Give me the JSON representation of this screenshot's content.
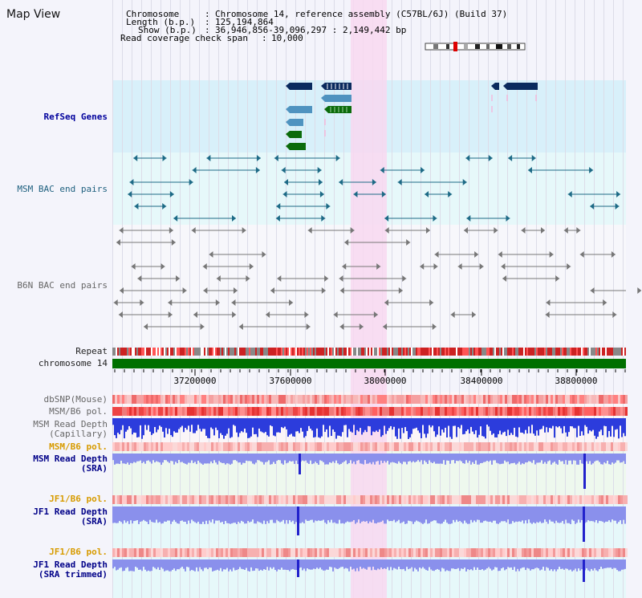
{
  "page_title": "Map View",
  "info": {
    "chromosome_label": "Chromosome",
    "chromosome_value": "Chromosome 14, reference assembly (C57BL/6J) (Build 37)",
    "length_label": "Length (b.p.)",
    "length_value": "125,194,864",
    "show_label": "Show (b.p.)",
    "show_value": "36,946,856-39,096,297 : 2,149,442 bp",
    "coverage_label": "Read coverage check span",
    "coverage_value": "10,000"
  },
  "tracks": {
    "refseq": "RefSeq Genes",
    "msm_bac": "MSM BAC end pairs",
    "b6n_bac": "B6N BAC end pairs",
    "repeat": "Repeat",
    "chromosome": "chromosome 14",
    "dbsnp": "dbSNP(Mouse)",
    "msm_b6_pol_1": "MSM/B6 pol.",
    "msm_depth_cap_1": "MSM Read Depth",
    "msm_depth_cap_2": "(Capillary)",
    "msm_b6_pol_2": "MSM/B6 pol.",
    "msm_depth_sra_1": "MSM Read Depth",
    "msm_depth_sra_2": "(SRA)",
    "jf1_b6_pol_1": "JF1/B6 pol.",
    "jf1_depth_sra_1": "JF1 Read Depth",
    "jf1_depth_sra_2": "(SRA)",
    "jf1_b6_pol_2": "JF1/B6 pol.",
    "jf1_depth_trim_1": "JF1 Read Depth",
    "jf1_depth_trim_2": "(SRA trimmed)"
  },
  "axis": {
    "ticks": [
      "37200000",
      "37600000",
      "38000000",
      "38400000",
      "38800000"
    ]
  },
  "colors": {
    "refseq_bg": "#d8f0fa",
    "bac_bg": "#e6f8fa",
    "highlight": "#f8d8f0",
    "chromosome_bar": "#007000",
    "gene_dark": "#0a2a5e",
    "gene_mid": "#4f93c0",
    "gene_green": "#0b6b0b",
    "depth_blue": "#2c3cdc",
    "depth_lavender": "#8a90ec"
  }
}
